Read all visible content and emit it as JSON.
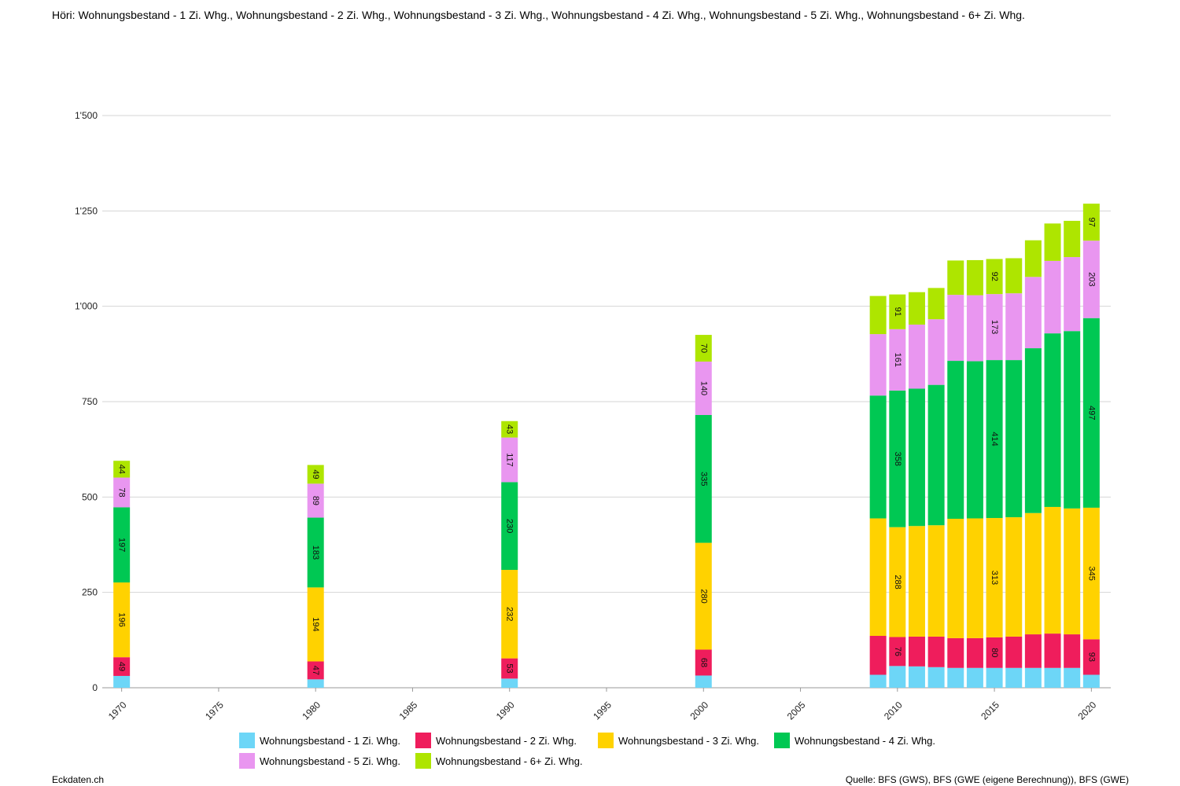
{
  "title": "Höri: Wohnungsbestand - 1 Zi. Whg., Wohnungsbestand - 2 Zi. Whg., Wohnungsbestand - 3 Zi. Whg., Wohnungsbestand - 4 Zi. Whg., Wohnungsbestand - 5 Zi. Whg., Wohnungsbestand - 6+ Zi. Whg.",
  "brand": "Eckdaten.ch",
  "source": "Quelle: BFS (GWS), BFS (GWE (eigene Berechnung)), BFS (GWE)",
  "chart_data": {
    "type": "bar",
    "stacked": true,
    "grid": true,
    "legend_position": "bottom",
    "xlim": [
      1969,
      2021
    ],
    "ylim": [
      0,
      1500
    ],
    "x_ticks": [
      1970,
      1975,
      1980,
      1985,
      1990,
      1995,
      2000,
      2005,
      2010,
      2015,
      2020
    ],
    "y_ticks": [
      0,
      250,
      500,
      750,
      1000,
      1250,
      1500
    ],
    "y_tick_labels": [
      "0",
      "250",
      "500",
      "750",
      "1'000",
      "1'250",
      "1'500"
    ],
    "x": [
      1970,
      1980,
      1990,
      2000,
      2009,
      2010,
      2011,
      2012,
      2013,
      2014,
      2015,
      2016,
      2017,
      2018,
      2019,
      2020
    ],
    "series": [
      {
        "name": "Wohnungsbestand - 1 Zi. Whg.",
        "color": "#6dd6f7",
        "values": [
          31,
          22,
          24,
          32,
          34,
          57,
          56,
          54,
          52,
          52,
          52,
          52,
          52,
          52,
          52,
          34
        ]
      },
      {
        "name": "Wohnungsbestand - 2 Zi. Whg.",
        "color": "#ef1d5c",
        "values": [
          49,
          47,
          53,
          68,
          102,
          76,
          78,
          80,
          78,
          78,
          80,
          82,
          88,
          90,
          88,
          93
        ]
      },
      {
        "name": "Wohnungsbestand - 3 Zi. Whg.",
        "color": "#ffd200",
        "values": [
          196,
          194,
          232,
          280,
          308,
          288,
          290,
          292,
          313,
          314,
          313,
          313,
          318,
          332,
          330,
          345
        ]
      },
      {
        "name": "Wohnungsbestand - 4 Zi. Whg.",
        "color": "#00c853",
        "values": [
          197,
          183,
          230,
          335,
          322,
          358,
          360,
          368,
          414,
          412,
          414,
          412,
          432,
          455,
          465,
          497
        ]
      },
      {
        "name": "Wohnungsbestand - 5 Zi. Whg.",
        "color": "#e996f0",
        "values": [
          78,
          89,
          117,
          140,
          161,
          161,
          168,
          172,
          173,
          173,
          173,
          175,
          187,
          190,
          194,
          203
        ]
      },
      {
        "name": "Wohnungsbestand - 6+ Zi. Whg.",
        "color": "#aee500",
        "values": [
          44,
          49,
          43,
          70,
          100,
          91,
          85,
          82,
          90,
          92,
          92,
          92,
          96,
          98,
          95,
          97
        ]
      }
    ],
    "labeled_x": [
      1970,
      1980,
      1990,
      2000,
      2010,
      2015,
      2020
    ]
  }
}
